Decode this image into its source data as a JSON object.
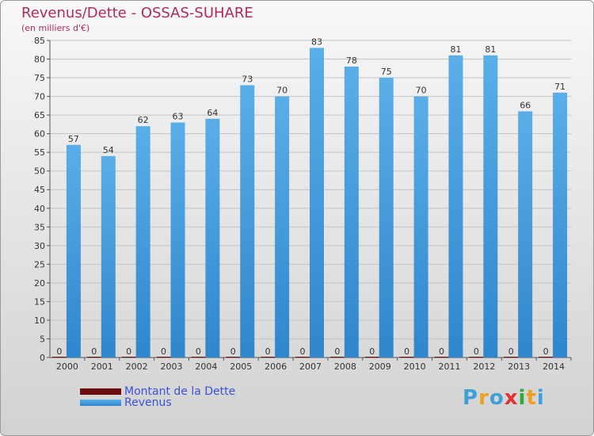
{
  "title": "Revenus/Dette - OSSAS-SUHARE",
  "subtitle": "(en milliers d'€)",
  "chart_data": {
    "type": "bar",
    "categories": [
      "2000",
      "2001",
      "2002",
      "2003",
      "2004",
      "2005",
      "2006",
      "2007",
      "2008",
      "2009",
      "2010",
      "2011",
      "2012",
      "2013",
      "2014"
    ],
    "series": [
      {
        "name": "Montant de la Dette",
        "color": "#6b0d0d",
        "values": [
          0,
          0,
          0,
          0,
          0,
          0,
          0,
          0,
          0,
          0,
          0,
          0,
          0,
          0,
          0
        ]
      },
      {
        "name": "Revenus",
        "color": "#4aa0e0",
        "values": [
          57,
          54,
          62,
          63,
          64,
          73,
          70,
          83,
          78,
          75,
          70,
          81,
          81,
          66,
          71
        ]
      }
    ],
    "ylim": [
      0,
      85
    ],
    "yticks": [
      0,
      5,
      10,
      15,
      20,
      25,
      30,
      35,
      40,
      45,
      50,
      55,
      60,
      65,
      70,
      75,
      80,
      85
    ],
    "grid": true
  },
  "legend": {
    "items": [
      {
        "label": "Montant de la Dette",
        "color": "#6b0d0d"
      },
      {
        "label": "Revenus",
        "color": "#4aa0e0"
      }
    ]
  },
  "logo": {
    "text": "Proxiti",
    "letters": [
      "P",
      "r",
      "o",
      "x",
      "i",
      "t",
      "i"
    ],
    "colors": [
      "#3fa0d8",
      "#f0a020",
      "#3fa0d8",
      "#e03030",
      "#2eaa3a",
      "#f0a020",
      "#3fa0d8"
    ]
  }
}
